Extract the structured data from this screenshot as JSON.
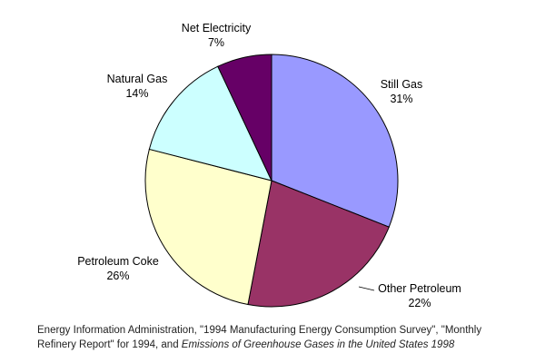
{
  "chart_data": {
    "type": "pie",
    "title": "",
    "slices": [
      {
        "label": "Still Gas",
        "percent_label": "31%",
        "value": 31,
        "color": "#9999FF"
      },
      {
        "label": "Other Petroleum",
        "percent_label": "22%",
        "value": 22,
        "color": "#993366"
      },
      {
        "label": "Petroleum Coke",
        "percent_label": "26%",
        "value": 26,
        "color": "#FFFFCC"
      },
      {
        "label": "Natural Gas",
        "percent_label": "14%",
        "value": 14,
        "color": "#CCFFFF"
      },
      {
        "label": "Net Electricity",
        "percent_label": "7%",
        "value": 7,
        "color": "#660066"
      }
    ],
    "start_angle": "12 o'clock",
    "direction": "clockwise",
    "legend": "none (labels beside slices)"
  },
  "source": {
    "line1": "Energy Information Administration, \"1994 Manufacturing Energy Consumption Survey\", \"Monthly",
    "line2_prefix": "Refinery Report\" for 1994, and ",
    "line2_italic": "Emissions of Greenhouse Gases in the United States 1998"
  }
}
